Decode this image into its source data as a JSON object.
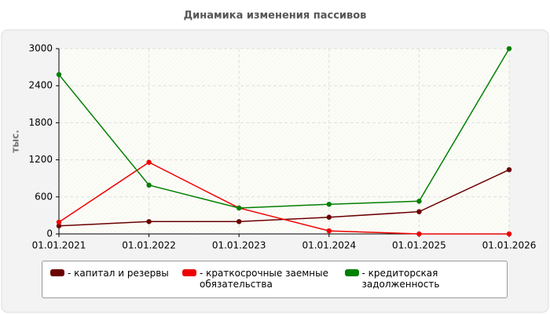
{
  "chart_data": {
    "type": "line",
    "title": "Динамика изменения пассивов",
    "y_label": "тыс.",
    "categories": [
      "01.01.2021",
      "01.01.2022",
      "01.01.2023",
      "01.01.2024",
      "01.01.2025",
      "01.01.2026"
    ],
    "series": [
      {
        "name": "- капитал и резервы",
        "color": "#6b0000",
        "values": [
          130,
          200,
          200,
          270,
          360,
          1040
        ]
      },
      {
        "name": "- краткосрочные заемные обязательства",
        "color": "#ee0000",
        "values": [
          190,
          1160,
          420,
          50,
          0,
          0
        ]
      },
      {
        "name": "- кредиторская задолженность",
        "color": "#008000",
        "values": [
          2580,
          790,
          420,
          480,
          530,
          3000
        ]
      }
    ],
    "ylim": [
      0,
      3000
    ],
    "yticks": [
      0,
      600,
      1200,
      1800,
      2400,
      3000
    ],
    "grid": true
  }
}
